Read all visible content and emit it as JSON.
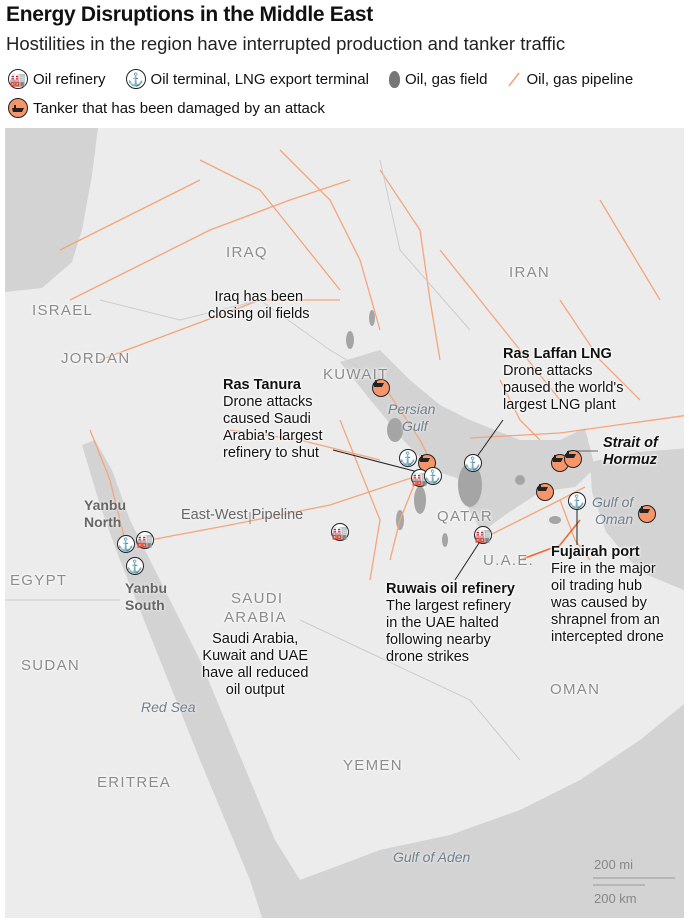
{
  "header": {
    "title": "Energy Disruptions in the Middle East",
    "subtitle": "Hostilities in the region have interrupted production and tanker traffic"
  },
  "legend": {
    "refinery": "Oil refinery",
    "terminal": "Oil terminal, LNG export terminal",
    "field": "Oil, gas field",
    "pipeline": "Oil, gas pipeline",
    "tanker": "Tanker that has been damaged by an attack"
  },
  "colors": {
    "land": "#ececec",
    "water": "#d3d3d3",
    "pipeline": "#f5a57a",
    "tanker": "#f4956a",
    "field": "#9a9a9a"
  },
  "countries": [
    "IRAQ",
    "IRAN",
    "ISRAEL",
    "JORDAN",
    "KUWAIT",
    "QATAR",
    "U.A.E.",
    "SAUDI",
    "ARABIA",
    "EGYPT",
    "SUDAN",
    "OMAN",
    "ERITREA",
    "YEMEN"
  ],
  "waters": [
    "Persian",
    "Gulf",
    "Red Sea",
    "Gulf of",
    "Oman",
    "Gulf of Aden"
  ],
  "places": {
    "yanbu_north": [
      "Yanbu",
      "North"
    ],
    "yanbu_south": [
      "Yanbu",
      "South"
    ],
    "pipeline_label": "East-West Pipeline"
  },
  "annotations": {
    "iraq": [
      "Iraq has been",
      "closing oil fields"
    ],
    "ras_tanura": {
      "title": "Ras Tanura",
      "lines": [
        "Drone attacks",
        "caused Saudi",
        "Arabia's largest",
        "refinery to shut"
      ]
    },
    "ras_laffan": {
      "title": "Ras Laffan LNG",
      "lines": [
        "Drone attacks",
        "paused the world's",
        "largest LNG plant"
      ]
    },
    "hormuz": [
      "Strait of",
      "Hormuz"
    ],
    "fujairah": {
      "title": "Fujairah port",
      "lines": [
        "Fire in the major",
        "oil trading hub",
        "was caused by",
        "shrapnel from an",
        "intercepted drone"
      ]
    },
    "ruwais": {
      "title": "Ruwais oil refinery",
      "lines": [
        "The largest refinery",
        "in the UAE halted",
        "following nearby",
        "drone strikes"
      ]
    },
    "saudi": [
      "Saudi Arabia,",
      "Kuwait and UAE",
      "have all reduced",
      "oil output"
    ]
  },
  "scale": {
    "miles": "200 mi",
    "km": "200 km"
  }
}
